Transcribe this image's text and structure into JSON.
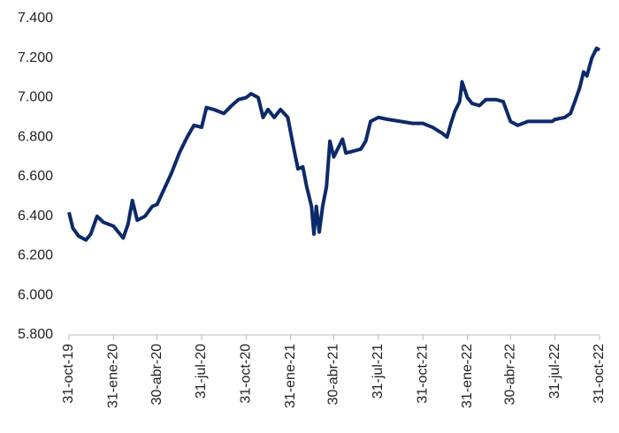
{
  "chart_data": {
    "type": "line",
    "x": [
      "2019-10-31",
      "2019-11-08",
      "2019-11-20",
      "2019-12-05",
      "2019-12-15",
      "2019-12-28",
      "2020-01-10",
      "2020-01-31",
      "2020-02-10",
      "2020-02-20",
      "2020-03-01",
      "2020-03-10",
      "2020-03-20",
      "2020-04-05",
      "2020-04-20",
      "2020-04-30",
      "2020-05-15",
      "2020-05-30",
      "2020-06-15",
      "2020-07-01",
      "2020-07-15",
      "2020-07-31",
      "2020-08-10",
      "2020-08-25",
      "2020-09-15",
      "2020-10-01",
      "2020-10-15",
      "2020-10-31",
      "2020-11-10",
      "2020-11-25",
      "2020-12-05",
      "2020-12-15",
      "2020-12-28",
      "2021-01-10",
      "2021-01-25",
      "2021-02-05",
      "2021-02-15",
      "2021-02-25",
      "2021-03-05",
      "2021-03-15",
      "2021-03-20",
      "2021-03-25",
      "2021-03-31",
      "2021-04-07",
      "2021-04-15",
      "2021-04-22",
      "2021-04-30",
      "2021-05-10",
      "2021-05-18",
      "2021-05-25",
      "2021-06-10",
      "2021-06-25",
      "2021-07-05",
      "2021-07-15",
      "2021-07-31",
      "2021-08-20",
      "2021-09-15",
      "2021-10-10",
      "2021-10-31",
      "2021-11-20",
      "2021-12-10",
      "2021-12-20",
      "2021-12-28",
      "2022-01-05",
      "2022-01-15",
      "2022-01-20",
      "2022-01-31",
      "2022-02-10",
      "2022-02-25",
      "2022-03-10",
      "2022-03-31",
      "2022-04-15",
      "2022-04-30",
      "2022-05-15",
      "2022-06-05",
      "2022-06-25",
      "2022-07-15",
      "2022-07-25",
      "2022-07-31",
      "2022-08-20",
      "2022-09-01",
      "2022-09-10",
      "2022-09-20",
      "2022-09-28",
      "2022-10-05",
      "2022-10-15",
      "2022-10-25",
      "2022-10-31"
    ],
    "series": [
      {
        "color": "#0c2a6a",
        "values": [
          6420,
          6340,
          6300,
          6280,
          6310,
          6400,
          6370,
          6350,
          6320,
          6290,
          6360,
          6480,
          6380,
          6400,
          6450,
          6460,
          6540,
          6620,
          6720,
          6800,
          6860,
          6850,
          6950,
          6940,
          6920,
          6960,
          6990,
          7000,
          7020,
          7000,
          6900,
          6940,
          6900,
          6940,
          6900,
          6760,
          6640,
          6650,
          6550,
          6450,
          6310,
          6450,
          6320,
          6450,
          6550,
          6780,
          6700,
          6750,
          6790,
          6720,
          6730,
          6740,
          6780,
          6880,
          6900,
          6890,
          6880,
          6870,
          6870,
          6850,
          6820,
          6800,
          6870,
          6930,
          6980,
          7080,
          7000,
          6970,
          6960,
          6990,
          6990,
          6980,
          6880,
          6860,
          6880,
          6880,
          6880,
          6880,
          6890,
          6900,
          6920,
          6980,
          7050,
          7130,
          7110,
          7200,
          7250,
          7240
        ]
      }
    ],
    "xlim": [
      "2019-10-31",
      "2022-10-31"
    ],
    "xticks": [
      {
        "value": "2019-10-31",
        "label": "31-oct-19"
      },
      {
        "value": "2020-01-31",
        "label": "31-ene-20"
      },
      {
        "value": "2020-04-30",
        "label": "30-abr-20"
      },
      {
        "value": "2020-07-31",
        "label": "31-jul-20"
      },
      {
        "value": "2020-10-31",
        "label": "31-oct-20"
      },
      {
        "value": "2021-01-31",
        "label": "31-ene-21"
      },
      {
        "value": "2021-04-30",
        "label": "30-abr-21"
      },
      {
        "value": "2021-07-31",
        "label": "31-jul-21"
      },
      {
        "value": "2021-10-31",
        "label": "31-oct-21"
      },
      {
        "value": "2022-01-31",
        "label": "31-ene-22"
      },
      {
        "value": "2022-04-30",
        "label": "30-abr-22"
      },
      {
        "value": "2022-07-31",
        "label": "31-jul-22"
      },
      {
        "value": "2022-10-31",
        "label": "31-oct-22"
      }
    ],
    "ylim": [
      5800,
      7400
    ],
    "yticks": [
      {
        "value": 5800,
        "label": "5.800"
      },
      {
        "value": 6000,
        "label": "6.000"
      },
      {
        "value": 6200,
        "label": "6.200"
      },
      {
        "value": 6400,
        "label": "6.400"
      },
      {
        "value": 6600,
        "label": "6.600"
      },
      {
        "value": 6800,
        "label": "6.800"
      },
      {
        "value": 7000,
        "label": "7.000"
      },
      {
        "value": 7200,
        "label": "7.200"
      },
      {
        "value": 7400,
        "label": "7.400"
      }
    ],
    "grid": false
  }
}
